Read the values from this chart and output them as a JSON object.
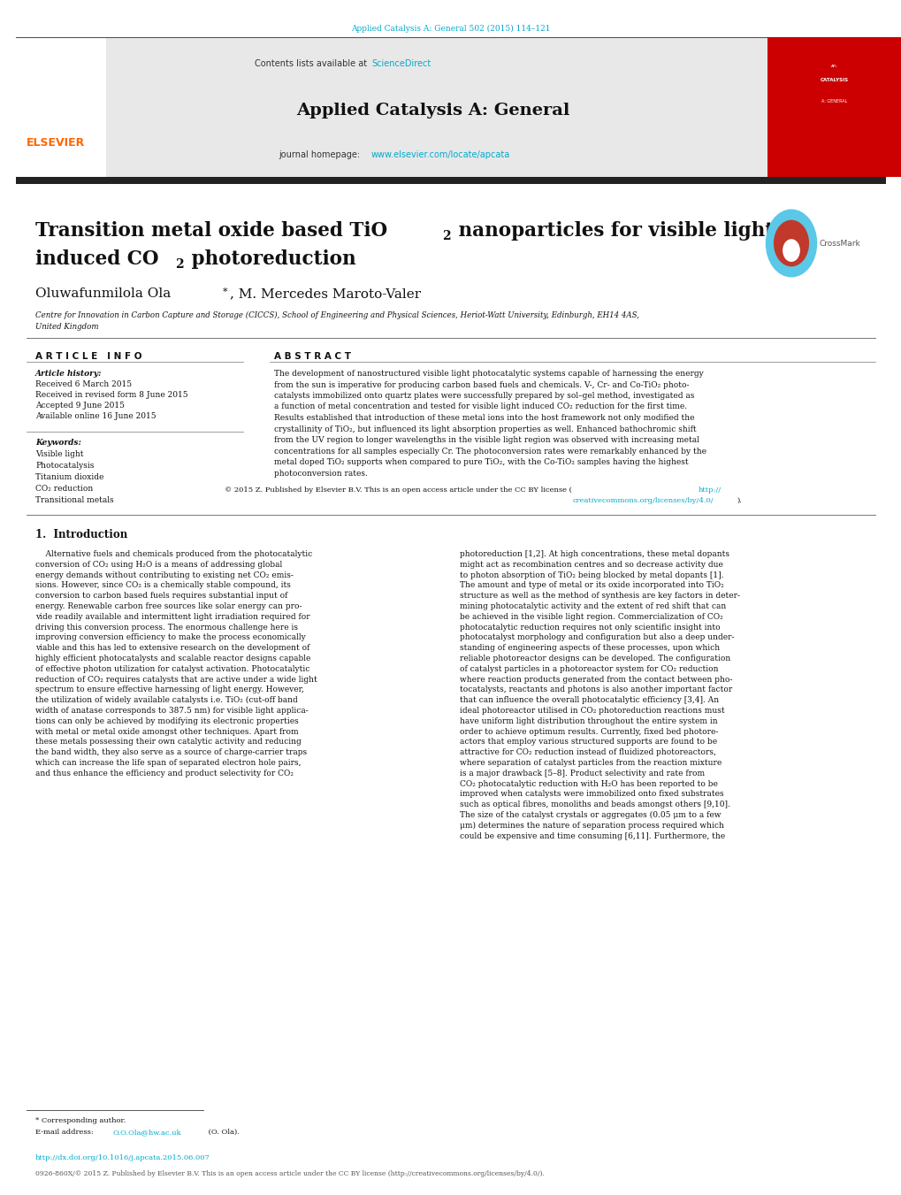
{
  "page_width": 10.2,
  "page_height": 13.51,
  "bg_color": "#ffffff",
  "top_citation": "Applied Catalysis A: General 502 (2015) 114–121",
  "top_citation_color": "#00aacc",
  "header_bg": "#e8e8e8",
  "header_contents_text": "Contents lists available at ",
  "header_sciencedirect": "ScienceDirect",
  "header_sciencedirect_color": "#00aacc",
  "journal_title": "Applied Catalysis A: General",
  "journal_homepage_text": "journal homepage: ",
  "journal_homepage_url": "www.elsevier.com/locate/apcata",
  "journal_homepage_url_color": "#00aacc",
  "divider_color": "#333333",
  "article_title_line1": "Transition metal oxide based TiO",
  "article_title_sub1": "2",
  "article_title_line1c": " nanoparticles for visible light",
  "article_title_line2": "induced CO",
  "article_title_sub2": "2",
  "article_title_line2c": " photoreduction",
  "authors": "Oluwafunmilola Ola*, M. Mercedes Maroto-Valer",
  "affiliation_line1": "Centre for Innovation in Carbon Capture and Storage (CICCS), School of Engineering and Physical Sciences, Heriot-Watt University, Edinburgh, EH14 4AS,",
  "affiliation_line2": "United Kingdom",
  "section_article_info": "A R T I C L E   I N F O",
  "section_abstract": "A B S T R A C T",
  "article_history_label": "Article history:",
  "article_history": "Received 6 March 2015\nReceived in revised form 8 June 2015\nAccepted 9 June 2015\nAvailable online 16 June 2015",
  "keywords_label": "Keywords:",
  "keywords": "Visible light\nPhotocatalysis\nTitanium dioxide\nCO₂ reduction\nTransitional metals",
  "copyright_link_color": "#00aacc",
  "intro_heading": "1.  Introduction",
  "footnote_asterisk": "* Corresponding author.",
  "footnote_email_prefix": "E-mail address: ",
  "footnote_email_link": "O.O.Ola@hw.ac.uk",
  "footnote_email_suffix": " (O. Ola).",
  "footnote_email_color": "#00aacc",
  "doi_text": "http://dx.doi.org/10.1016/j.apcata.2015.06.007",
  "doi_color": "#00aacc",
  "bottom_text": "0926-860X/© 2015 Z. Published by Elsevier B.V. This is an open access article under the CC BY license (http://creativecommons.org/licenses/by/4.0/).",
  "bottom_text_color": "#555555",
  "elsevier_text": "ELSEVIER",
  "elsevier_color": "#ff6600",
  "red_box_color": "#cc0000",
  "dark_bar_color": "#222222",
  "link_blue": "#00aacc",
  "abstract_lines": [
    "The development of nanostructured visible light photocatalytic systems capable of harnessing the energy",
    "from the sun is imperative for producing carbon based fuels and chemicals. V-, Cr- and Co-TiO₂ photo-",
    "catalysts immobilized onto quartz plates were successfully prepared by sol–gel method, investigated as",
    "a function of metal concentration and tested for visible light induced CO₂ reduction for the first time.",
    "Results established that introduction of these metal ions into the host framework not only modified the",
    "crystallinity of TiO₂, but influenced its light absorption properties as well. Enhanced bathochromic shift",
    "from the UV region to longer wavelengths in the visible light region was observed with increasing metal",
    "concentrations for all samples especially Cr. The photoconversion rates were remarkably enhanced by the",
    "metal doped TiO₂ supports when compared to pure TiO₂, with the Co-TiO₂ samples having the highest",
    "photoconversion rates."
  ],
  "left_col_lines": [
    "    Alternative fuels and chemicals produced from the photocatalytic",
    "conversion of CO₂ using H₂O is a means of addressing global",
    "energy demands without contributing to existing net CO₂ emis-",
    "sions. However, since CO₂ is a chemically stable compound, its",
    "conversion to carbon based fuels requires substantial input of",
    "energy. Renewable carbon free sources like solar energy can pro-",
    "vide readily available and intermittent light irradiation required for",
    "driving this conversion process. The enormous challenge here is",
    "improving conversion efficiency to make the process economically",
    "viable and this has led to extensive research on the development of",
    "highly efficient photocatalysts and scalable reactor designs capable",
    "of effective photon utilization for catalyst activation. Photocatalytic",
    "reduction of CO₂ requires catalysts that are active under a wide light",
    "spectrum to ensure effective harnessing of light energy. However,",
    "the utilization of widely available catalysts i.e. TiO₂ (cut-off band",
    "width of anatase corresponds to 387.5 nm) for visible light applica-",
    "tions can only be achieved by modifying its electronic properties",
    "with metal or metal oxide amongst other techniques. Apart from",
    "these metals possessing their own catalytic activity and reducing",
    "the band width, they also serve as a source of charge-carrier traps",
    "which can increase the life span of separated electron hole pairs,",
    "and thus enhance the efficiency and product selectivity for CO₂"
  ],
  "right_col_lines": [
    "photoreduction [1,2]. At high concentrations, these metal dopants",
    "might act as recombination centres and so decrease activity due",
    "to photon absorption of TiO₂ being blocked by metal dopants [1].",
    "The amount and type of metal or its oxide incorporated into TiO₂",
    "structure as well as the method of synthesis are key factors in deter-",
    "mining photocatalytic activity and the extent of red shift that can",
    "be achieved in the visible light region. Commercialization of CO₂",
    "photocatalytic reduction requires not only scientific insight into",
    "photocatalyst morphology and configuration but also a deep under-",
    "standing of engineering aspects of these processes, upon which",
    "reliable photoreactor designs can be developed. The configuration",
    "of catalyst particles in a photoreactor system for CO₂ reduction",
    "where reaction products generated from the contact between pho-",
    "tocatalysts, reactants and photons is also another important factor",
    "that can influence the overall photocatalytic efficiency [3,4]. An",
    "ideal photoreactor utilised in CO₂ photoreduction reactions must",
    "have uniform light distribution throughout the entire system in",
    "order to achieve optimum results. Currently, fixed bed photore-",
    "actors that employ various structured supports are found to be",
    "attractive for CO₂ reduction instead of fluidized photoreactors,",
    "where separation of catalyst particles from the reaction mixture",
    "is a major drawback [5–8]. Product selectivity and rate from",
    "CO₂ photocatalytic reduction with H₂O has been reported to be",
    "improved when catalysts were immobilized onto fixed substrates",
    "such as optical fibres, monoliths and beads amongst others [9,10].",
    "The size of the catalyst crystals or aggregates (0.05 μm to a few",
    "μm) determines the nature of separation process required which",
    "could be expensive and time consuming [6,11]. Furthermore, the"
  ]
}
